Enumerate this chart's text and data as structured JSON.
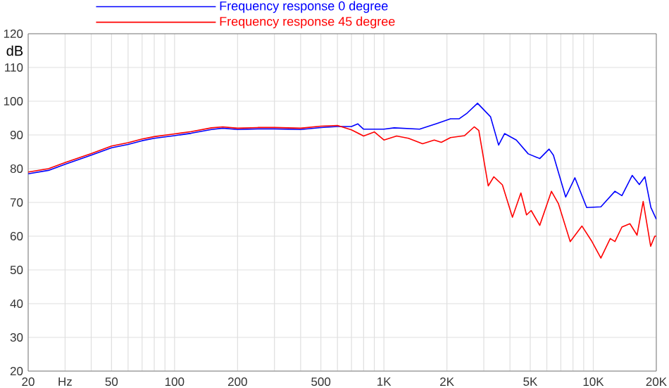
{
  "chart_data": {
    "type": "line",
    "ylabel": "dB",
    "log": "x",
    "grid": true,
    "legend": "top",
    "marker": "none",
    "line_style": "solid",
    "xlim": [
      20,
      20000
    ],
    "ylim": [
      20,
      120
    ],
    "xticks": [
      20,
      {
        "value": 30,
        "label": "Hz"
      },
      {
        "value": 40,
        "label": null
      },
      50,
      {
        "value": 60,
        "label": null
      },
      {
        "value": 70,
        "label": null
      },
      {
        "value": 80,
        "label": null
      },
      {
        "value": 90,
        "label": null
      },
      100,
      200,
      {
        "value": 300,
        "label": null
      },
      {
        "value": 400,
        "label": null
      },
      500,
      {
        "value": 600,
        "label": null
      },
      {
        "value": 700,
        "label": null
      },
      {
        "value": 800,
        "label": null
      },
      {
        "value": 900,
        "label": null
      },
      {
        "value": 1000,
        "label": "1K"
      },
      {
        "value": 2000,
        "label": "2K"
      },
      {
        "value": 3000,
        "label": null
      },
      {
        "value": 4000,
        "label": null
      },
      {
        "value": 5000,
        "label": "5K"
      },
      {
        "value": 6000,
        "label": null
      },
      {
        "value": 7000,
        "label": null
      },
      {
        "value": 8000,
        "label": null
      },
      {
        "value": 9000,
        "label": null
      },
      {
        "value": 10000,
        "label": "10K"
      },
      {
        "value": 20000,
        "label": "20K"
      }
    ],
    "yticks": [
      20,
      30,
      40,
      50,
      60,
      70,
      80,
      90,
      100,
      110,
      120
    ],
    "series": [
      {
        "name": "Frequency response 0 degree",
        "color": "#0000ff",
        "x": [
          20,
          25,
          30,
          40,
          50,
          60,
          70,
          80,
          100,
          120,
          150,
          170,
          200,
          250,
          300,
          400,
          500,
          600,
          700,
          750,
          800,
          1000,
          1120,
          1480,
          1790,
          2080,
          2290,
          2500,
          2800,
          3230,
          3530,
          3770,
          4290,
          4890,
          5550,
          6150,
          6450,
          7380,
          8170,
          9300,
          10870,
          12690,
          13700,
          15340,
          16590,
          17640,
          18840,
          20000
        ],
        "values": [
          78.5,
          79.5,
          81.3,
          84,
          86.2,
          87.2,
          88.3,
          89,
          89.8,
          90.5,
          91.6,
          92,
          91.6,
          91.8,
          91.8,
          91.6,
          92.2,
          92.5,
          92.5,
          93.3,
          91.7,
          91.7,
          92.1,
          91.7,
          93.4,
          94.8,
          94.8,
          96.5,
          99.4,
          95.4,
          87,
          90.4,
          88.5,
          84.4,
          83,
          85.8,
          84,
          71.6,
          77.3,
          68.5,
          68.7,
          73.3,
          72,
          78,
          75.3,
          77.6,
          68.5,
          65
        ]
      },
      {
        "name": "Frequency response 45 degree",
        "color": "#ff0000",
        "x": [
          20,
          25,
          30,
          40,
          50,
          60,
          70,
          80,
          100,
          120,
          150,
          170,
          200,
          250,
          300,
          400,
          500,
          600,
          700,
          800,
          900,
          1000,
          1150,
          1310,
          1530,
          1740,
          1880,
          2080,
          2430,
          2700,
          2840,
          3150,
          3350,
          3680,
          4110,
          4510,
          4800,
          5050,
          5550,
          6310,
          6820,
          7760,
          8830,
          9790,
          10870,
          12050,
          12690,
          13700,
          14960,
          16180,
          17310,
          18790,
          19670,
          20000
        ],
        "values": [
          79,
          80,
          81.8,
          84.5,
          86.7,
          87.7,
          88.8,
          89.5,
          90.3,
          91,
          92.1,
          92.4,
          92,
          92.2,
          92.2,
          92,
          92.6,
          92.8,
          91.5,
          89.7,
          90.9,
          88.5,
          89.7,
          89,
          87.4,
          88.5,
          87.8,
          89.2,
          89.8,
          92.4,
          91.3,
          74.9,
          77.6,
          75.2,
          65.6,
          72.8,
          66.3,
          67.6,
          63.2,
          73.3,
          69.6,
          58.4,
          63,
          58.7,
          53.5,
          59.3,
          58.4,
          62.7,
          63.7,
          60.3,
          70.3,
          57,
          60,
          60
        ]
      }
    ]
  }
}
